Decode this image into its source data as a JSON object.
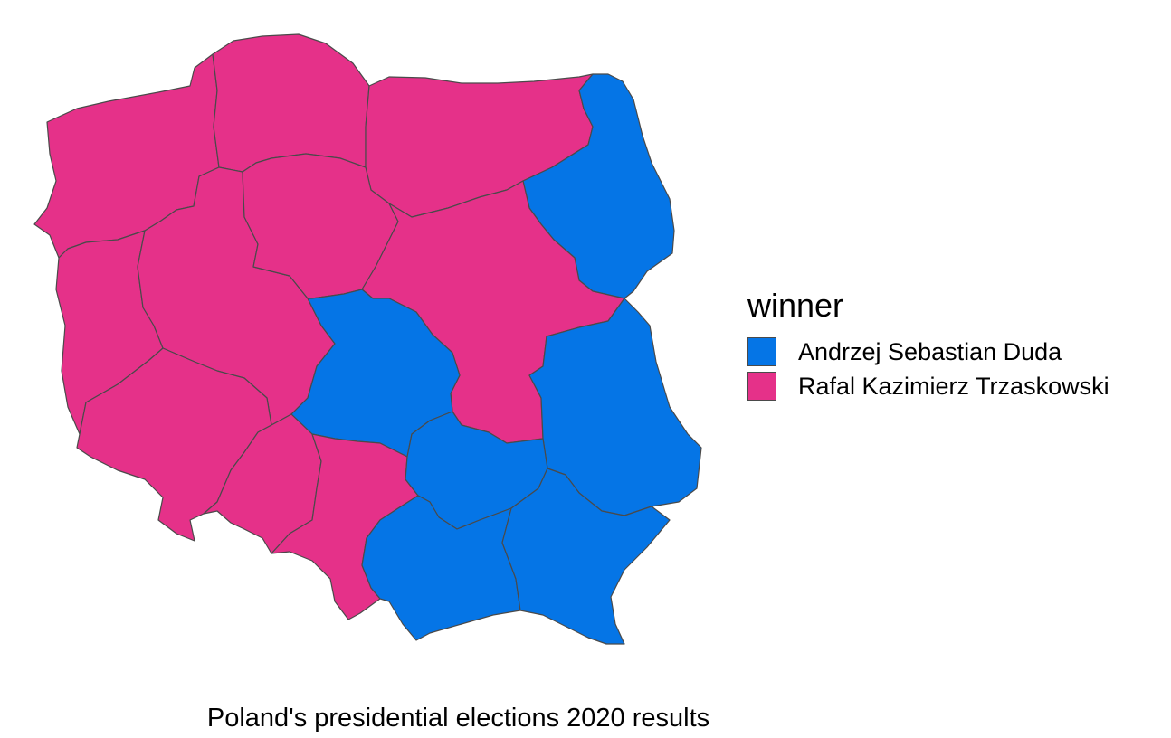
{
  "caption": "Poland's presidential elections 2020 results",
  "legend": {
    "title": "winner",
    "items": [
      {
        "key": "duda",
        "label": "Andrzej Sebastian Duda",
        "color": "#0575E6"
      },
      {
        "key": "trzaskowski",
        "label": "Rafal Kazimierz Trzaskowski",
        "color": "#E53189"
      }
    ]
  },
  "regions": [
    {
      "name": "zachodniopomorskie",
      "winner": "trzaskowski"
    },
    {
      "name": "pomorskie",
      "winner": "trzaskowski"
    },
    {
      "name": "warminsko-mazurskie",
      "winner": "trzaskowski"
    },
    {
      "name": "podlaskie",
      "winner": "duda"
    },
    {
      "name": "lubuskie",
      "winner": "trzaskowski"
    },
    {
      "name": "wielkopolskie",
      "winner": "trzaskowski"
    },
    {
      "name": "kujawsko-pomorskie",
      "winner": "trzaskowski"
    },
    {
      "name": "mazowieckie",
      "winner": "trzaskowski"
    },
    {
      "name": "lodzkie",
      "winner": "duda"
    },
    {
      "name": "lubelskie",
      "winner": "duda"
    },
    {
      "name": "dolnoslaskie",
      "winner": "trzaskowski"
    },
    {
      "name": "opolskie",
      "winner": "trzaskowski"
    },
    {
      "name": "slaskie",
      "winner": "trzaskowski"
    },
    {
      "name": "swietokrzyskie",
      "winner": "duda"
    },
    {
      "name": "malopolskie",
      "winner": "duda"
    },
    {
      "name": "podkarpackie",
      "winner": "duda"
    }
  ]
}
